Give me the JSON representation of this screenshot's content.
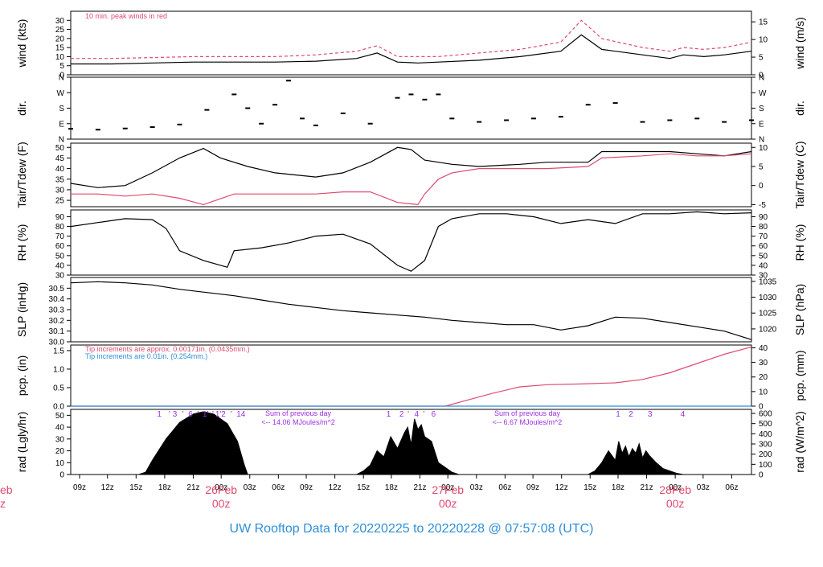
{
  "title": "UW Rooftop Data for 20220225  to  20220228 @ 07:57:08  (UTC)",
  "colors": {
    "accent_red": "#e04a6f",
    "accent_blue": "#2f8fd8",
    "accent_purple": "#9b30e0",
    "line": "#000000"
  },
  "chart_data": [
    {
      "id": "wind",
      "type": "line",
      "ylabel": "wind (kts)",
      "ylabel_right": "wind (m/s)",
      "ylim": [
        0,
        35
      ],
      "yticks": [
        0,
        5,
        10,
        15,
        20,
        25,
        30
      ],
      "ylim_right": [
        0,
        18
      ],
      "yticks_right": [
        0,
        5,
        10,
        15
      ],
      "annotation": "10 min. peak winds in red",
      "series": [
        {
          "role": "wind speed",
          "color": "#000000",
          "x": [
            0,
            6,
            12,
            18,
            24,
            30,
            36,
            42,
            45,
            48,
            51,
            54,
            60,
            66,
            72,
            75,
            78,
            84,
            88,
            90,
            93,
            96,
            100
          ],
          "y": [
            6,
            6,
            6.5,
            7,
            7,
            7,
            7.5,
            9,
            12,
            7,
            6.5,
            7,
            8,
            10,
            13,
            22,
            14,
            11,
            9,
            11,
            10,
            11,
            13
          ]
        },
        {
          "role": "10 min. peak winds",
          "color": "#e04a6f",
          "x": [
            0,
            6,
            12,
            18,
            24,
            30,
            36,
            42,
            45,
            48,
            51,
            54,
            60,
            66,
            72,
            75,
            78,
            84,
            88,
            90,
            93,
            96,
            100
          ],
          "y": [
            9,
            9,
            9.5,
            10,
            10,
            10,
            11,
            13,
            16,
            10,
            10,
            10,
            12,
            14,
            18,
            30,
            20,
            15,
            13,
            15,
            14,
            15,
            18
          ]
        }
      ]
    },
    {
      "id": "dir",
      "type": "scatter",
      "ylabel": "dir.",
      "ylabel_right": "dir.",
      "ylim": [
        0,
        360
      ],
      "yticks": [
        0,
        90,
        180,
        270,
        360
      ],
      "yticklabels": [
        "N",
        "E",
        "S",
        "W",
        "N"
      ],
      "series": [
        {
          "role": "wind direction",
          "color": "#000000",
          "x": [
            0,
            4,
            8,
            12,
            16,
            20,
            24,
            26,
            28,
            30,
            32,
            34,
            36,
            40,
            44,
            48,
            50,
            52,
            54,
            56,
            60,
            64,
            68,
            72,
            76,
            80,
            84,
            88,
            92,
            96,
            100
          ],
          "y": [
            60,
            55,
            62,
            70,
            85,
            170,
            260,
            180,
            90,
            200,
            340,
            120,
            80,
            150,
            90,
            240,
            260,
            230,
            260,
            120,
            100,
            110,
            120,
            130,
            200,
            210,
            100,
            110,
            120,
            100,
            110
          ]
        }
      ]
    },
    {
      "id": "temp",
      "type": "line",
      "ylabel": "Tair/Tdew (F)",
      "ylabel_right": "Tair/Tdew (C)",
      "ylim": [
        22,
        52
      ],
      "yticks": [
        25,
        30,
        35,
        40,
        45,
        50
      ],
      "yticks_right": [
        -5,
        0,
        5,
        10
      ],
      "series": [
        {
          "role": "air temperature",
          "color": "#000000",
          "x": [
            0,
            4,
            8,
            12,
            16,
            19.5,
            22,
            26,
            30,
            36,
            40,
            44,
            48,
            50,
            52,
            56,
            60,
            66,
            70,
            76,
            78,
            84,
            88,
            92,
            96,
            100
          ],
          "y": [
            33,
            31,
            32,
            38,
            45,
            49.5,
            45,
            41,
            38,
            36,
            38,
            43,
            50,
            49,
            44,
            42,
            41,
            42,
            43,
            43,
            48,
            48,
            48,
            47,
            46,
            48
          ]
        },
        {
          "role": "dew point",
          "color": "#e04a6f",
          "x": [
            0,
            4,
            8,
            12,
            16,
            19.5,
            24,
            30,
            36,
            40,
            44,
            48,
            51,
            52,
            54,
            56,
            60,
            66,
            70,
            76,
            78,
            84,
            88,
            92,
            96,
            100
          ],
          "y": [
            28,
            28,
            27,
            28,
            26,
            23,
            28,
            28,
            28,
            29,
            29,
            24,
            23,
            28,
            35,
            38,
            40,
            40,
            40,
            41,
            45,
            46,
            47,
            46,
            46,
            47
          ]
        }
      ]
    },
    {
      "id": "rh",
      "type": "line",
      "ylabel": "RH (%)",
      "ylabel_right": "RH (%)",
      "ylim": [
        30,
        97
      ],
      "yticks": [
        30,
        40,
        50,
        60,
        70,
        80,
        90
      ],
      "yticks_right": [
        30,
        40,
        50,
        60,
        70,
        80,
        90
      ],
      "series": [
        {
          "role": "relative humidity",
          "color": "#000000",
          "x": [
            0,
            4,
            8,
            12,
            14,
            16,
            19.5,
            23,
            24,
            28,
            32,
            36,
            40,
            44,
            48,
            50,
            52,
            54,
            56,
            60,
            64,
            68,
            72,
            76,
            80,
            84,
            88,
            92,
            96,
            100
          ],
          "y": [
            80,
            84,
            88,
            87,
            78,
            55,
            45,
            38,
            55,
            58,
            63,
            70,
            72,
            62,
            40,
            34,
            45,
            80,
            88,
            93,
            93,
            90,
            83,
            87,
            83,
            93,
            93,
            95,
            93,
            94
          ]
        }
      ]
    },
    {
      "id": "slp",
      "type": "line",
      "ylabel": "SLP (inHg)",
      "ylabel_right": "SLP (hPa)",
      "ylim": [
        30.0,
        30.6
      ],
      "yticks": [
        30.0,
        30.1,
        30.2,
        30.3,
        30.4,
        30.5
      ],
      "yticklabels": [
        "30.0",
        "30.1",
        "30.2",
        "30.3",
        "30.4",
        "30.5"
      ],
      "yticks_right": [
        1020,
        1025,
        1030,
        1035
      ],
      "series": [
        {
          "role": "sea level pressure",
          "color": "#000000",
          "x": [
            0,
            4,
            8,
            12,
            16,
            20,
            24,
            28,
            32,
            36,
            40,
            44,
            48,
            52,
            56,
            60,
            64,
            68,
            72,
            76,
            80,
            84,
            88,
            92,
            96,
            100
          ],
          "y": [
            30.55,
            30.56,
            30.55,
            30.53,
            30.49,
            30.46,
            30.43,
            30.39,
            30.35,
            30.32,
            30.29,
            30.27,
            30.25,
            30.23,
            30.2,
            30.18,
            30.16,
            30.16,
            30.11,
            30.15,
            30.23,
            30.22,
            30.18,
            30.14,
            30.1,
            30.02
          ]
        }
      ]
    },
    {
      "id": "pcp",
      "type": "line",
      "ylabel": "pcp. (in)",
      "ylabel_right": "pcp. (mm)",
      "ylim": [
        0,
        1.65
      ],
      "yticks": [
        0,
        0.5,
        1.0,
        1.5
      ],
      "yticklabels": [
        "0.0",
        "0.5",
        "1.0",
        "1.5"
      ],
      "yticks_right": [
        0,
        10,
        20,
        30,
        40
      ],
      "annotations": [
        {
          "text": "Tip increments are approx. 0.00171in. (0.0435mm.)",
          "color": "#e04a6f"
        },
        {
          "text": "Tip increments are 0.01in. (0.254mm.)",
          "color": "#2f8fd8"
        }
      ],
      "series": [
        {
          "role": "precipitation (0.00171in tips)",
          "color": "#e04a6f",
          "x": [
            0,
            55,
            58,
            62,
            66,
            70,
            75,
            80,
            84,
            88,
            92,
            96,
            100
          ],
          "y": [
            0,
            0,
            0.15,
            0.35,
            0.52,
            0.58,
            0.6,
            0.63,
            0.72,
            0.9,
            1.15,
            1.4,
            1.6
          ]
        },
        {
          "role": "precipitation (0.01in tips)",
          "color": "#2f8fd8",
          "x": [
            0,
            100
          ],
          "y": [
            0,
            0
          ]
        }
      ]
    },
    {
      "id": "rad",
      "type": "area",
      "ylabel": "rad (Lgly/hr)",
      "ylabel_right": "rad (W/m^2)",
      "ylim": [
        0,
        55
      ],
      "yticks": [
        0,
        10,
        20,
        30,
        40,
        50
      ],
      "yticks_right": [
        0,
        100,
        200,
        300,
        400,
        500,
        600
      ],
      "daily_totals": [
        {
          "line1": "Sum of previous day",
          "line2": "<-- 14.06 MJoules/m^2"
        },
        {
          "line1": "Sum of previous day",
          "line2": "<-- 6.67 MJoules/m^2"
        }
      ],
      "hour_marks": [
        {
          "x": 13,
          "label": "1"
        },
        {
          "x": 14.5,
          "label": "'"
        },
        {
          "x": 15.3,
          "label": "3"
        },
        {
          "x": 16.5,
          "label": "'"
        },
        {
          "x": 17.6,
          "label": "6"
        },
        {
          "x": 18.7,
          "label": "'"
        },
        {
          "x": 19.8,
          "label": "1'"
        },
        {
          "x": 20.9,
          "label": "'"
        },
        {
          "x": 22.0,
          "label": "1'2"
        },
        {
          "x": 23.6,
          "label": "'"
        },
        {
          "x": 25.0,
          "label": "14"
        },
        {
          "x": 46.7,
          "label": "1"
        },
        {
          "x": 48.6,
          "label": "2"
        },
        {
          "x": 49.6,
          "label": "'"
        },
        {
          "x": 50.8,
          "label": "4"
        },
        {
          "x": 51.9,
          "label": "'"
        },
        {
          "x": 53.3,
          "label": "6"
        },
        {
          "x": 80.4,
          "label": "1"
        },
        {
          "x": 82.3,
          "label": "2"
        },
        {
          "x": 85.1,
          "label": "3"
        },
        {
          "x": 89.9,
          "label": "4"
        }
      ],
      "series": [
        {
          "role": "solar radiation",
          "color": "#000000",
          "x": [
            0,
            10,
            11,
            12,
            14,
            16,
            18,
            19.5,
            21,
            23,
            24.5,
            25.5,
            26,
            42,
            43,
            44,
            45,
            46,
            47,
            48,
            49,
            49.5,
            50,
            50.5,
            51,
            51.5,
            52,
            53,
            54,
            55,
            56,
            57,
            76,
            77,
            78,
            79,
            80,
            80.5,
            81,
            81.5,
            82,
            82.5,
            83,
            83.5,
            84,
            84.5,
            85,
            86,
            87,
            88,
            89,
            90,
            100
          ],
          "y": [
            0,
            0,
            2,
            12,
            30,
            44,
            51,
            53,
            51,
            43,
            28,
            8,
            0,
            0,
            3,
            8,
            20,
            15,
            32,
            22,
            35,
            40,
            25,
            47,
            38,
            42,
            32,
            28,
            10,
            6,
            2,
            0,
            0,
            3,
            10,
            20,
            12,
            28,
            18,
            24,
            15,
            22,
            18,
            26,
            14,
            20,
            16,
            10,
            5,
            3,
            1,
            0,
            0
          ]
        }
      ]
    }
  ],
  "x_axis": {
    "range": [
      0,
      100
    ],
    "ticks": [
      {
        "x": 1.3,
        "label": "09z"
      },
      {
        "x": 5.4,
        "label": "12z"
      },
      {
        "x": 9.6,
        "label": "15z"
      },
      {
        "x": 13.8,
        "label": "18z"
      },
      {
        "x": 18.0,
        "label": "21z"
      },
      {
        "x": 22.1,
        "label": "00z"
      },
      {
        "x": 26.3,
        "label": "03z"
      },
      {
        "x": 30.5,
        "label": "06z"
      },
      {
        "x": 34.6,
        "label": "09z"
      },
      {
        "x": 38.8,
        "label": "12z"
      },
      {
        "x": 43.0,
        "label": "15z"
      },
      {
        "x": 47.1,
        "label": "18z"
      },
      {
        "x": 51.3,
        "label": "21z"
      },
      {
        "x": 55.4,
        "label": "00z"
      },
      {
        "x": 59.6,
        "label": "03z"
      },
      {
        "x": 63.8,
        "label": "06z"
      },
      {
        "x": 67.9,
        "label": "09z"
      },
      {
        "x": 72.1,
        "label": "12z"
      },
      {
        "x": 76.3,
        "label": "15z"
      },
      {
        "x": 80.4,
        "label": "18z"
      },
      {
        "x": 84.6,
        "label": "21z"
      },
      {
        "x": 88.8,
        "label": "00z"
      },
      {
        "x": 92.9,
        "label": "03z"
      },
      {
        "x": 97.1,
        "label": "06z"
      }
    ],
    "day_labels": [
      {
        "x": 22.1,
        "date": "26Feb",
        "hour": "00z"
      },
      {
        "x": 55.4,
        "date": "27Feb",
        "hour": "00z"
      },
      {
        "x": 88.8,
        "date": "28Feb",
        "hour": "00z"
      }
    ],
    "partial_day_label": {
      "date": "eb",
      "hour": "z"
    }
  }
}
